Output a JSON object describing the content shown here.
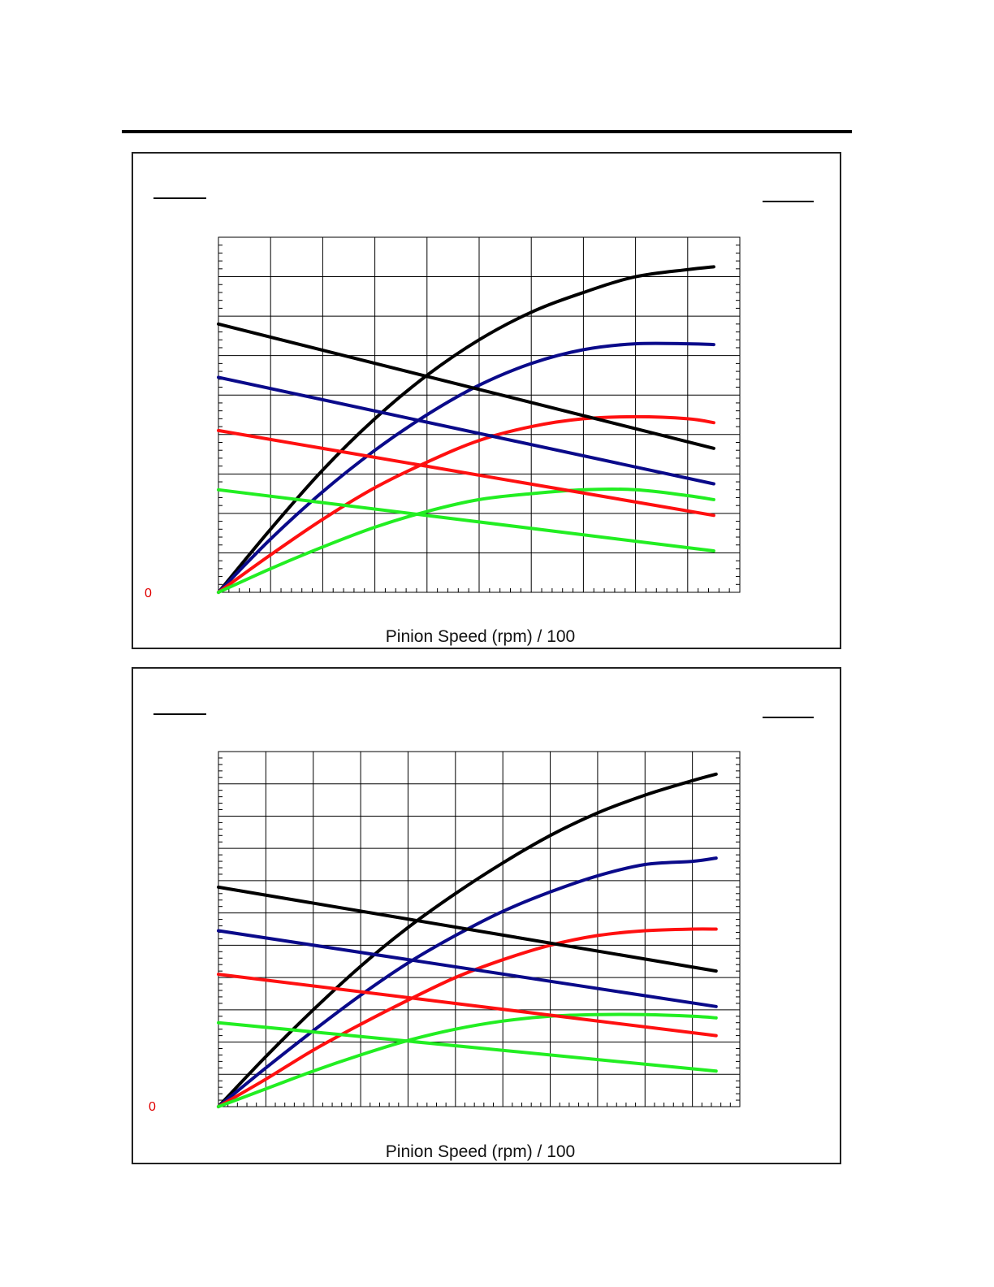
{
  "page": {
    "background": "#ffffff"
  },
  "colors": {
    "black": "#000000",
    "blue": "#0a0a8a",
    "red": "#ff1010",
    "green": "#22ee22",
    "zero": "#e00000"
  },
  "chart_data": [
    {
      "type": "line",
      "title": "",
      "xlabel": "Pinion Speed (rpm) / 100",
      "ylabel": "",
      "zero_label": "0",
      "xlim": [
        0,
        10
      ],
      "ylim": [
        0,
        9
      ],
      "grid": true,
      "series": [
        {
          "color": "black",
          "x": [
            0,
            1,
            2,
            3,
            4,
            5,
            6,
            7,
            8,
            9,
            9.5
          ],
          "y": [
            0,
            1.6,
            3.1,
            4.4,
            5.5,
            6.4,
            7.1,
            7.6,
            8.0,
            8.18,
            8.25
          ]
        },
        {
          "color": "blue",
          "x": [
            0,
            1,
            2,
            3,
            4,
            5,
            6,
            7,
            8,
            9,
            9.5
          ],
          "y": [
            0,
            1.35,
            2.55,
            3.6,
            4.5,
            5.25,
            5.8,
            6.15,
            6.3,
            6.3,
            6.28
          ]
        },
        {
          "color": "red",
          "x": [
            0,
            1,
            2,
            3,
            4,
            5,
            6,
            7,
            8,
            9,
            9.5
          ],
          "y": [
            0,
            0.95,
            1.85,
            2.65,
            3.3,
            3.85,
            4.2,
            4.4,
            4.45,
            4.4,
            4.3
          ]
        },
        {
          "color": "green",
          "x": [
            0,
            1,
            2,
            3,
            4,
            5,
            6,
            7,
            8,
            9,
            9.5
          ],
          "y": [
            0,
            0.6,
            1.15,
            1.65,
            2.05,
            2.35,
            2.5,
            2.6,
            2.6,
            2.45,
            2.35
          ]
        },
        {
          "color": "black",
          "x": [
            0,
            9.5
          ],
          "y": [
            6.8,
            3.65
          ]
        },
        {
          "color": "blue",
          "x": [
            0,
            9.5
          ],
          "y": [
            5.45,
            2.75
          ]
        },
        {
          "color": "red",
          "x": [
            0,
            9.5
          ],
          "y": [
            4.1,
            1.95
          ]
        },
        {
          "color": "green",
          "x": [
            0,
            9.5
          ],
          "y": [
            2.6,
            1.05
          ]
        }
      ]
    },
    {
      "type": "line",
      "title": "",
      "xlabel": "Pinion Speed (rpm) / 100",
      "ylabel": "",
      "zero_label": "0",
      "xlim": [
        0,
        11
      ],
      "ylim": [
        0,
        11
      ],
      "grid": true,
      "series": [
        {
          "color": "black",
          "x": [
            0,
            1,
            2,
            3,
            4,
            5,
            6,
            7,
            8,
            9,
            10,
            10.5
          ],
          "y": [
            0,
            1.55,
            3.0,
            4.35,
            5.55,
            6.6,
            7.55,
            8.4,
            9.1,
            9.65,
            10.1,
            10.3
          ]
        },
        {
          "color": "blue",
          "x": [
            0,
            1,
            2,
            3,
            4,
            5,
            6,
            7,
            8,
            9,
            10,
            10.5
          ],
          "y": [
            0,
            1.2,
            2.35,
            3.45,
            4.45,
            5.3,
            6.05,
            6.65,
            7.15,
            7.5,
            7.6,
            7.7
          ]
        },
        {
          "color": "red",
          "x": [
            0,
            1,
            2,
            3,
            4,
            5,
            6,
            7,
            8,
            9,
            10,
            10.5
          ],
          "y": [
            0,
            0.85,
            1.75,
            2.55,
            3.3,
            4.0,
            4.55,
            5.0,
            5.3,
            5.45,
            5.5,
            5.5
          ]
        },
        {
          "color": "green",
          "x": [
            0,
            1,
            2,
            3,
            4,
            5,
            6,
            7,
            8,
            9,
            10,
            10.5
          ],
          "y": [
            0,
            0.55,
            1.1,
            1.6,
            2.05,
            2.4,
            2.65,
            2.8,
            2.85,
            2.85,
            2.8,
            2.75
          ]
        },
        {
          "color": "black",
          "x": [
            0,
            10.5
          ],
          "y": [
            6.8,
            4.2
          ]
        },
        {
          "color": "blue",
          "x": [
            0,
            10.5
          ],
          "y": [
            5.45,
            3.1
          ]
        },
        {
          "color": "red",
          "x": [
            0,
            10.5
          ],
          "y": [
            4.1,
            2.2
          ]
        },
        {
          "color": "green",
          "x": [
            0,
            10.5
          ],
          "y": [
            2.6,
            1.1
          ]
        }
      ]
    }
  ]
}
